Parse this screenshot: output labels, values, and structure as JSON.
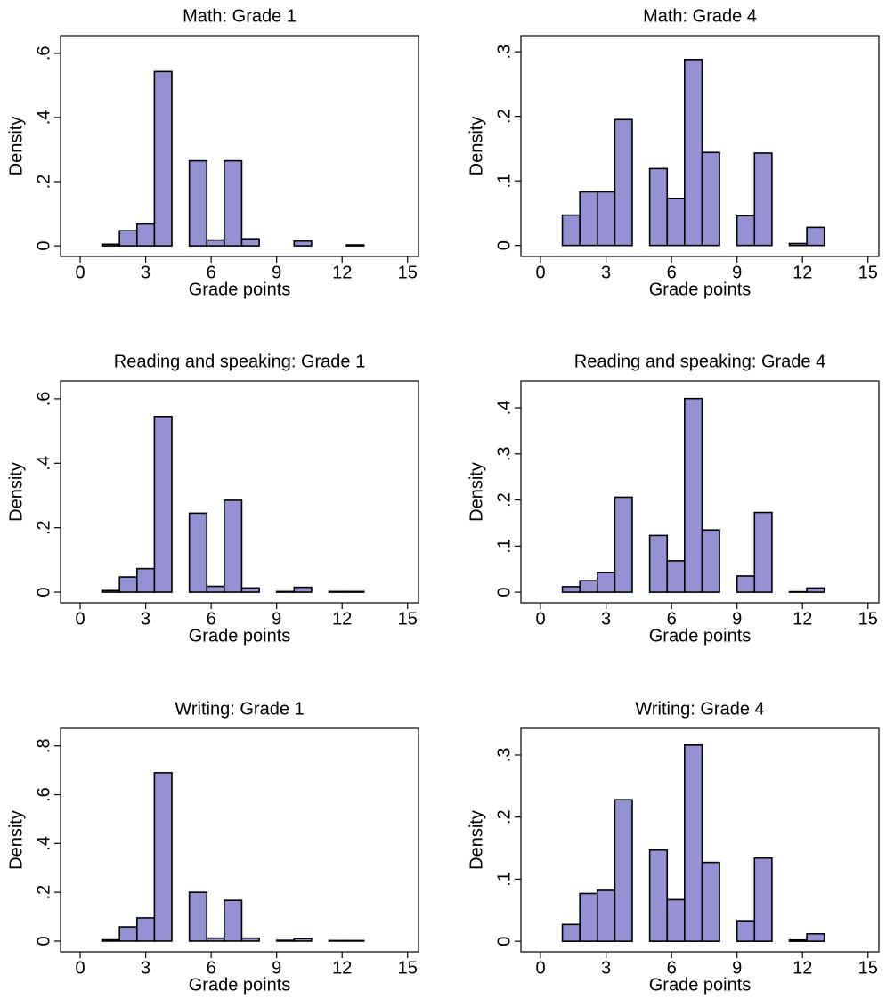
{
  "chart_data": [
    {
      "type": "histogram",
      "title": "Math: Grade 1",
      "xlabel": "Grade points",
      "ylabel": "Density",
      "color": "#9691d2",
      "bins": [
        1,
        1.8,
        2.6,
        3.4,
        4.2,
        5,
        5.8,
        6.6,
        7.4,
        8.2,
        9,
        9.8,
        10.6,
        11.4,
        12.2,
        13
      ],
      "values": [
        0.005,
        0.047,
        0.068,
        0.543,
        0,
        0.265,
        0.018,
        0.265,
        0.022,
        0,
        0,
        0.015,
        0,
        0,
        0.003
      ],
      "xlim": [
        -0.9,
        15.5
      ],
      "xticks": [
        0,
        3,
        6,
        9,
        12,
        15
      ],
      "ylim": [
        -0.033,
        0.655
      ],
      "yticks": [
        0,
        {
          "value": 0.2,
          "label": ".2"
        },
        {
          "value": 0.4,
          "label": ".4"
        },
        {
          "value": 0.6,
          "label": ".6"
        }
      ]
    },
    {
      "type": "histogram",
      "title": "Math: Grade 4",
      "xlabel": "Grade points",
      "ylabel": "Density",
      "color": "#9691d2",
      "bins": [
        1,
        1.8,
        2.6,
        3.4,
        4.2,
        5,
        5.8,
        6.6,
        7.4,
        8.2,
        9,
        9.8,
        10.6,
        11.4,
        12.2,
        13
      ],
      "values": [
        0.047,
        0.083,
        0.083,
        0.195,
        0,
        0.119,
        0.073,
        0.288,
        0.144,
        0,
        0.046,
        0.143,
        0,
        0.003,
        0.028
      ],
      "xlim": [
        -0.9,
        15.5
      ],
      "xticks": [
        0,
        3,
        6,
        9,
        12,
        15
      ],
      "ylim": [
        -0.017,
        0.325
      ],
      "yticks": [
        0,
        {
          "value": 0.1,
          "label": ".1"
        },
        {
          "value": 0.2,
          "label": ".2"
        },
        {
          "value": 0.3,
          "label": ".3"
        }
      ]
    },
    {
      "type": "histogram",
      "title": "Reading and speaking: Grade 1",
      "xlabel": "Grade points",
      "ylabel": "Density",
      "color": "#9691d2",
      "bins": [
        1,
        1.8,
        2.6,
        3.4,
        4.2,
        5,
        5.8,
        6.6,
        7.4,
        8.2,
        9,
        9.8,
        10.6,
        11.4,
        12.2,
        13
      ],
      "values": [
        0.005,
        0.047,
        0.073,
        0.545,
        0,
        0.245,
        0.018,
        0.285,
        0.013,
        0,
        0.002,
        0.015,
        0,
        0.002,
        0.002
      ],
      "xlim": [
        -0.9,
        15.5
      ],
      "xticks": [
        0,
        3,
        6,
        9,
        12,
        15
      ],
      "ylim": [
        -0.033,
        0.655
      ],
      "yticks": [
        0,
        {
          "value": 0.2,
          "label": ".2"
        },
        {
          "value": 0.4,
          "label": ".4"
        },
        {
          "value": 0.6,
          "label": ".6"
        }
      ]
    },
    {
      "type": "histogram",
      "title": "Reading and speaking: Grade 4",
      "xlabel": "Grade points",
      "ylabel": "Density",
      "color": "#9691d2",
      "bins": [
        1,
        1.8,
        2.6,
        3.4,
        4.2,
        5,
        5.8,
        6.6,
        7.4,
        8.2,
        9,
        9.8,
        10.6,
        11.4,
        12.2,
        13
      ],
      "values": [
        0.012,
        0.025,
        0.043,
        0.206,
        0,
        0.123,
        0.068,
        0.42,
        0.135,
        0,
        0.035,
        0.173,
        0,
        0.001,
        0.009
      ],
      "xlim": [
        -0.9,
        15.5
      ],
      "xticks": [
        0,
        3,
        6,
        9,
        12,
        15
      ],
      "ylim": [
        -0.023,
        0.458
      ],
      "yticks": [
        0,
        {
          "value": 0.1,
          "label": ".1"
        },
        {
          "value": 0.2,
          "label": ".2"
        },
        {
          "value": 0.3,
          "label": ".3"
        },
        {
          "value": 0.4,
          "label": ".4"
        }
      ]
    },
    {
      "type": "histogram",
      "title": "Writing: Grade 1",
      "xlabel": "Grade points",
      "ylabel": "Density",
      "color": "#9691d2",
      "bins": [
        1,
        1.8,
        2.6,
        3.4,
        4.2,
        5,
        5.8,
        6.6,
        7.4,
        8.2,
        9,
        9.8,
        10.6,
        11.4,
        12.2,
        13
      ],
      "values": [
        0.005,
        0.058,
        0.095,
        0.69,
        0,
        0.2,
        0.012,
        0.167,
        0.012,
        0,
        0.003,
        0.01,
        0,
        0.002,
        0.002
      ],
      "xlim": [
        -0.9,
        15.5
      ],
      "xticks": [
        0,
        3,
        6,
        9,
        12,
        15
      ],
      "ylim": [
        -0.044,
        0.872
      ],
      "yticks": [
        0,
        {
          "value": 0.2,
          "label": ".2"
        },
        {
          "value": 0.4,
          "label": ".4"
        },
        {
          "value": 0.6,
          "label": ".6"
        },
        {
          "value": 0.8,
          "label": ".8"
        }
      ]
    },
    {
      "type": "histogram",
      "title": "Writing: Grade 4",
      "xlabel": "Grade points",
      "ylabel": "Density",
      "color": "#9691d2",
      "bins": [
        1,
        1.8,
        2.6,
        3.4,
        4.2,
        5,
        5.8,
        6.6,
        7.4,
        8.2,
        9,
        9.8,
        10.6,
        11.4,
        12.2,
        13
      ],
      "values": [
        0.027,
        0.077,
        0.082,
        0.228,
        0,
        0.147,
        0.067,
        0.316,
        0.127,
        0,
        0.033,
        0.134,
        0,
        0.002,
        0.012
      ],
      "xlim": [
        -0.9,
        15.5
      ],
      "xticks": [
        0,
        3,
        6,
        9,
        12,
        15
      ],
      "ylim": [
        -0.017,
        0.343
      ],
      "yticks": [
        0,
        {
          "value": 0.1,
          "label": ".1"
        },
        {
          "value": 0.2,
          "label": ".2"
        },
        {
          "value": 0.3,
          "label": ".3"
        }
      ]
    }
  ]
}
